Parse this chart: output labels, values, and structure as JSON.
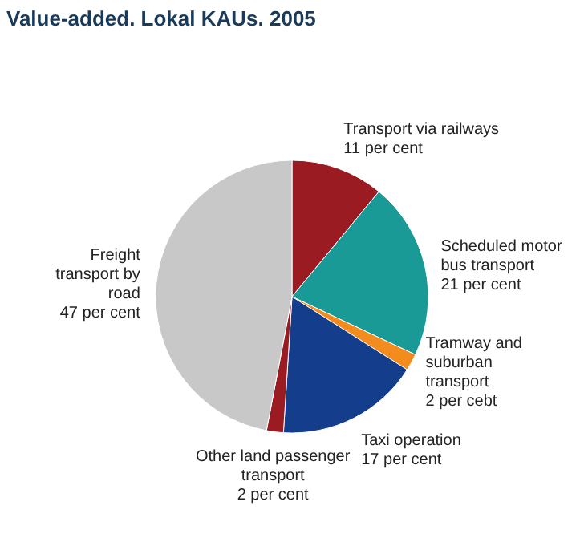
{
  "chart_data": {
    "type": "pie",
    "title": "Value-added. Lokal KAUs. 2005",
    "categories": [
      "Transport via railways",
      "Scheduled motor bus transport",
      "Tramway and suburban transport",
      "Taxi operation",
      "Other land passenger transport",
      "Freight transport by road"
    ],
    "values": [
      11,
      21,
      2,
      17,
      2,
      47
    ],
    "value_labels": [
      "11 per cent",
      "21 per cent",
      "2 per cebt",
      "17 per cent",
      "2 per cent",
      "47 per cent"
    ],
    "colors": [
      "#9b1b23",
      "#1a9a96",
      "#f28c1e",
      "#143d8c",
      "#9b1b23",
      "#c8c8c8"
    ]
  }
}
